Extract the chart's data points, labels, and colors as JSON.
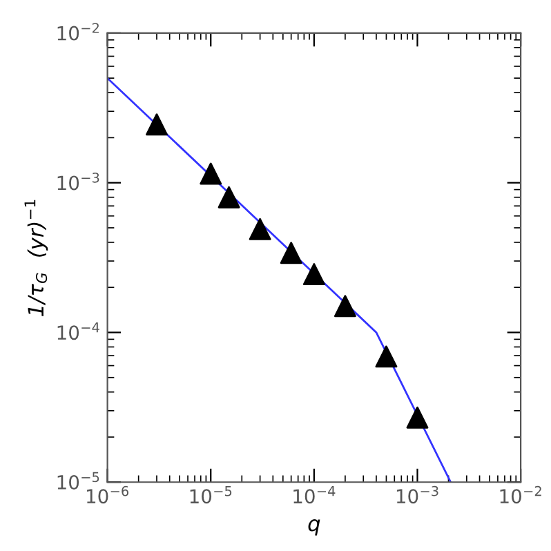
{
  "chart_data": {
    "type": "line",
    "xlabel": "q",
    "ylabel": "1/τ$_{G}$  (yr)$^{−1}$",
    "log": "xy",
    "xlim": [
      1e-06,
      0.01
    ],
    "ylim": [
      1e-05,
      0.01
    ],
    "xticks": [
      {
        "value": 1e-06,
        "label": "10$^{−6}$"
      },
      {
        "value": 1e-05,
        "label": "10$^{−5}$"
      },
      {
        "value": 0.0001,
        "label": "10$^{−4}$"
      },
      {
        "value": 0.001,
        "label": "10$^{−3}$"
      },
      {
        "value": 0.01,
        "label": "10$^{−2}$"
      }
    ],
    "yticks": [
      {
        "value": 1e-05,
        "label": "10$^{−5}$"
      },
      {
        "value": 0.0001,
        "label": "10$^{−4}$"
      },
      {
        "value": 0.001,
        "label": "10$^{−3}$"
      },
      {
        "value": 0.01,
        "label": "10$^{−2}$"
      }
    ],
    "series": [
      {
        "color": "#3333ff",
        "x": [
          1e-06,
          0.0004,
          0.0021
        ],
        "values": [
          0.005,
          0.0001,
          1e-05
        ],
        "marker": "none",
        "line_style": "solid"
      },
      {
        "type": "scatter",
        "color": "#000000",
        "marker": "triangle",
        "x": [
          3e-06,
          1e-05,
          1.5e-05,
          3e-05,
          6e-05,
          0.0001,
          0.0002,
          0.0005,
          0.001
        ],
        "values": [
          0.00245,
          0.00115,
          0.0008,
          0.00049,
          0.00034,
          0.000245,
          0.00015,
          6.9e-05,
          2.7e-05
        ]
      }
    ]
  }
}
